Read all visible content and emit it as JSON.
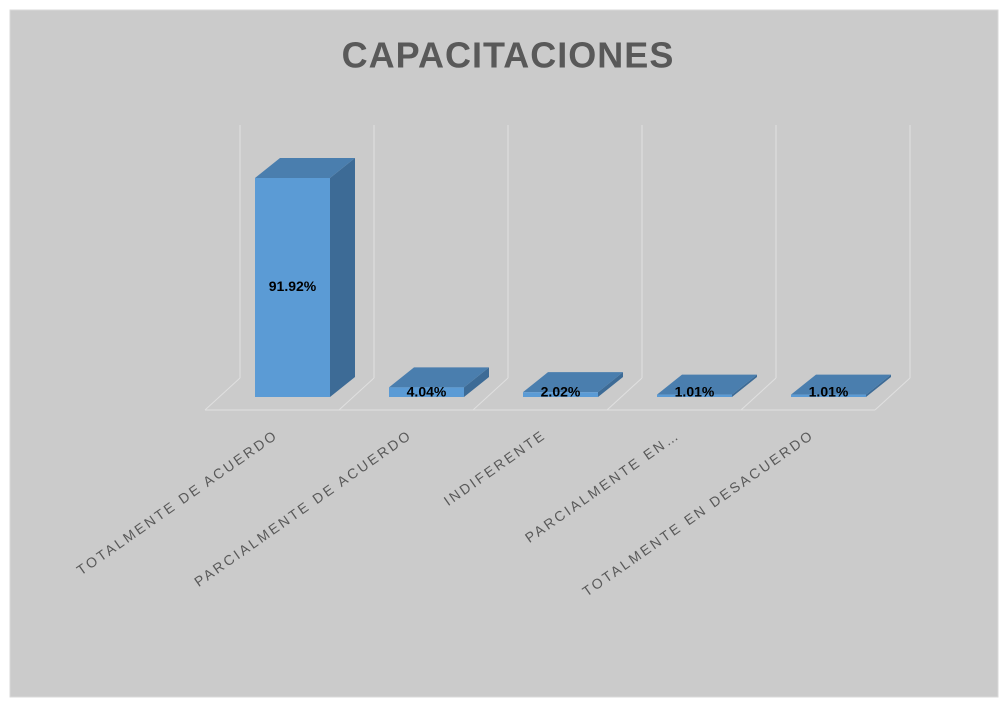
{
  "chart_data": {
    "type": "bar3d",
    "title": "CAPACITACIONES",
    "categories": [
      "TOTALMENTE DE ACUERDO",
      "PARCIALMENTE DE ACUERDO",
      "INDIFERENTE",
      "PARCIALMENTE EN…",
      "TOTALMENTE EN DESACUERDO"
    ],
    "values": [
      91.92,
      4.04,
      2.02,
      1.01,
      1.01
    ],
    "value_labels": [
      "91.92%",
      "4.04%",
      "2.02%",
      "1.01%",
      "1.01%"
    ],
    "color": "#5b9bd5",
    "grid": true
  }
}
